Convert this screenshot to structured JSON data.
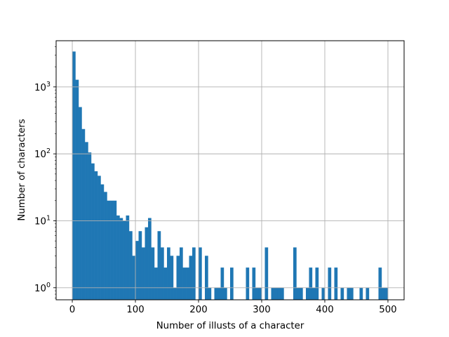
{
  "chart_data": {
    "type": "bar",
    "subtype": "histogram",
    "title": "",
    "xlabel": "Number of illusts of a character",
    "ylabel": "Number of characters",
    "yscale": "log",
    "xlim": [
      -25.6,
      525.6
    ],
    "ylim": [
      0.66,
      4900
    ],
    "grid": true,
    "bar_color": "#1f77b4",
    "grid_color": "#b0b0b0",
    "bin_width": 5,
    "bin_start": 0,
    "x_ticks": [
      0,
      100,
      200,
      300,
      400,
      500
    ],
    "x_tick_labels": [
      "0",
      "100",
      "200",
      "300",
      "400",
      "500"
    ],
    "y_ticks": [
      1,
      10,
      100,
      1000
    ],
    "y_tick_labels": [
      {
        "base": "10",
        "exp": "0"
      },
      {
        "base": "10",
        "exp": "1"
      },
      {
        "base": "10",
        "exp": "2"
      },
      {
        "base": "10",
        "exp": "3"
      }
    ],
    "categories_note": "bin i covers [5*i, 5*i+5)",
    "values": [
      3380,
      1280,
      500,
      235,
      150,
      105,
      72,
      55,
      47,
      35,
      27,
      20,
      20,
      20,
      12,
      11,
      10,
      12,
      7,
      3,
      5,
      7,
      4,
      8,
      11,
      4,
      2,
      7,
      4,
      2,
      4,
      3,
      1,
      3,
      4,
      2,
      2,
      3,
      4,
      0,
      4,
      0,
      3,
      1,
      0,
      1,
      1,
      2,
      1,
      0,
      2,
      0,
      0,
      0,
      0,
      2,
      0,
      2,
      1,
      1,
      0,
      4,
      0,
      1,
      1,
      1,
      1,
      0,
      0,
      0,
      4,
      1,
      1,
      0,
      1,
      2,
      1,
      2,
      0,
      1,
      0,
      2,
      0,
      2,
      0,
      1,
      0,
      1,
      1,
      0,
      0,
      1,
      0,
      1,
      0,
      0,
      0,
      2,
      1,
      1
    ]
  }
}
